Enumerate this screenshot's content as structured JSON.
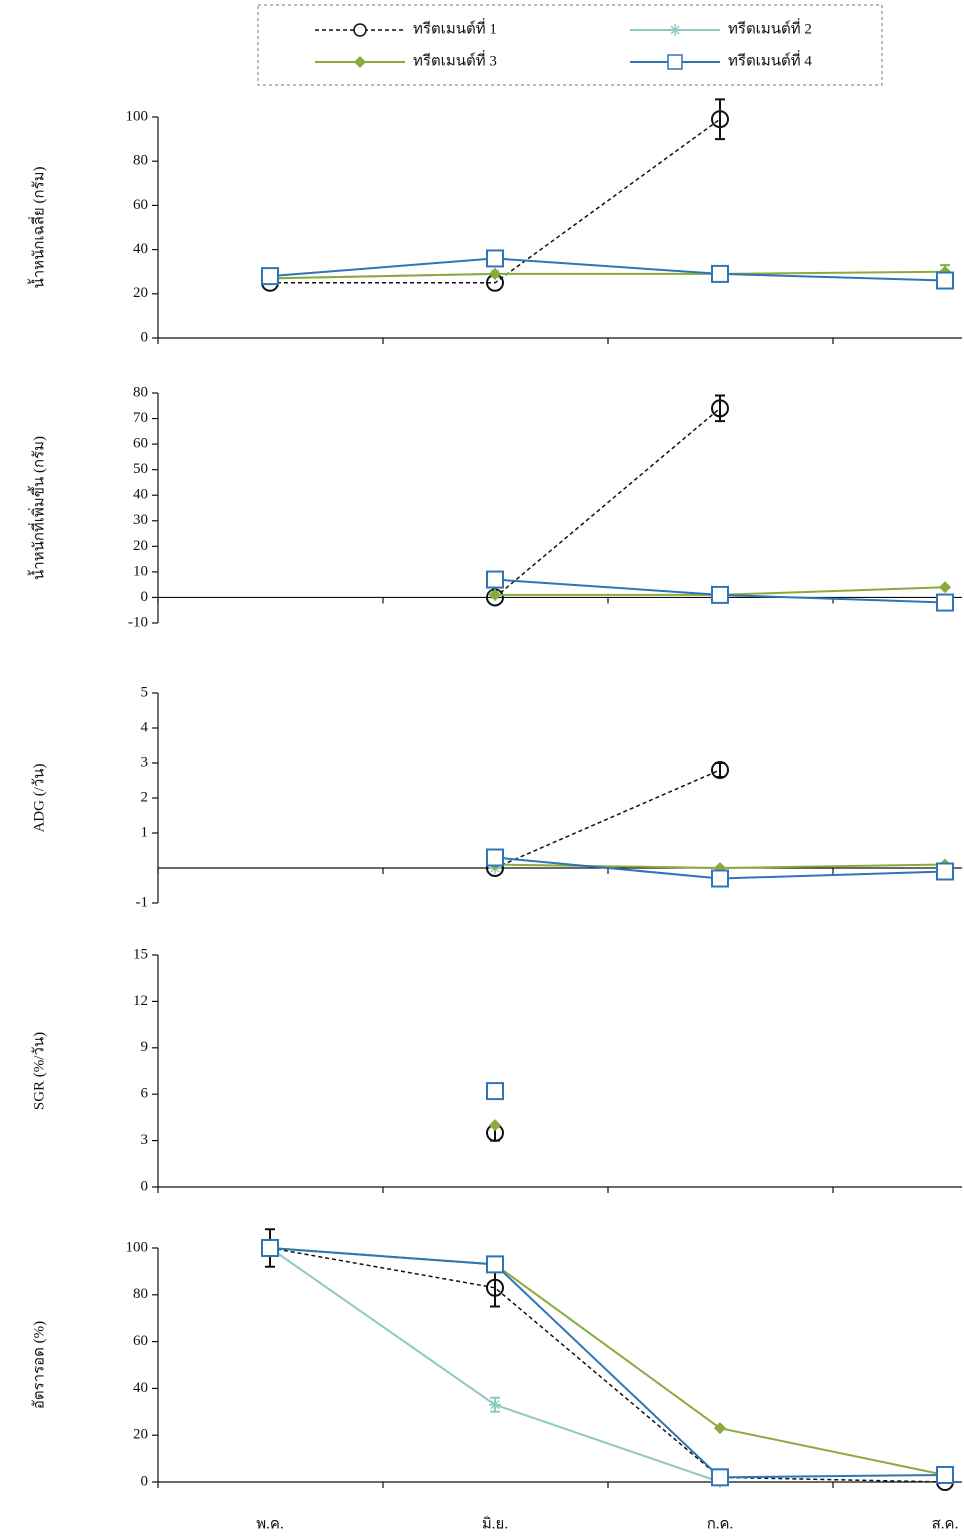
{
  "chart_data": {
    "type": "line",
    "categories": [
      "พ.ค.",
      "มิ.ย.",
      "ก.ค.",
      "ส.ค."
    ],
    "series": [
      {
        "name": "ทรีตเมนต์ที่ 1",
        "color": "#111111",
        "marker": "circle",
        "dash": true
      },
      {
        "name": "ทรีตเมนต์ที่ 2",
        "color": "#8fc9c2",
        "marker": "star",
        "dash": false
      },
      {
        "name": "ทรีตเมนต์ที่ 3",
        "color": "#8aab3c",
        "marker": "diamond",
        "dash": false
      },
      {
        "name": "ทรีตเมนต์ที่ 4",
        "color": "#2e75b6",
        "marker": "square",
        "dash": false
      }
    ],
    "panels": [
      {
        "ylabel": "น้ำหนักเฉลี่ย (กรัม)",
        "ylim": [
          0,
          100
        ],
        "yticks": [
          0,
          20,
          40,
          60,
          80,
          100
        ],
        "series": [
          {
            "values": [
              25,
              25,
              99,
              null
            ],
            "errors": [
              null,
              null,
              9,
              null
            ]
          },
          {
            "values": [
              27,
              29,
              null,
              null
            ],
            "errors": [
              null,
              null,
              null,
              null
            ]
          },
          {
            "values": [
              27,
              29,
              29,
              30
            ],
            "errors": [
              null,
              null,
              null,
              3
            ]
          },
          {
            "values": [
              28,
              36,
              29,
              26
            ],
            "errors": [
              null,
              null,
              null,
              null
            ]
          }
        ]
      },
      {
        "ylabel": "น้ำหนักที่เพิ่มขึ้น (กรัม)",
        "ylim": [
          -10,
          80
        ],
        "yticks": [
          -10,
          0,
          10,
          20,
          30,
          40,
          50,
          60,
          70,
          80
        ],
        "series": [
          {
            "values": [
              null,
              0,
              74,
              null
            ],
            "errors": [
              null,
              null,
              5,
              null
            ]
          },
          {
            "values": [
              null,
              1,
              null,
              null
            ],
            "errors": [
              null,
              null,
              null,
              null
            ]
          },
          {
            "values": [
              null,
              1,
              1,
              4
            ],
            "errors": [
              null,
              null,
              null,
              null
            ]
          },
          {
            "values": [
              null,
              7,
              1,
              -2
            ],
            "errors": [
              null,
              null,
              null,
              null
            ]
          }
        ]
      },
      {
        "ylabel": "ADG (/วัน)",
        "ylim": [
          -1,
          5
        ],
        "yticks": [
          -1,
          1,
          2,
          3,
          4,
          5
        ],
        "series": [
          {
            "values": [
              null,
              0,
              2.8,
              null
            ],
            "errors": [
              null,
              null,
              0.2,
              null
            ]
          },
          {
            "values": [
              null,
              0,
              null,
              null
            ],
            "errors": [
              null,
              null,
              null,
              null
            ]
          },
          {
            "values": [
              null,
              0.1,
              0,
              0.1
            ],
            "errors": [
              null,
              null,
              null,
              null
            ]
          },
          {
            "values": [
              null,
              0.3,
              -0.3,
              -0.1
            ],
            "errors": [
              null,
              null,
              null,
              null
            ]
          }
        ]
      },
      {
        "ylabel": "SGR (%/วัน)",
        "ylim": [
          0,
          15
        ],
        "yticks": [
          0,
          3,
          6,
          9,
          12,
          15
        ],
        "series": [
          {
            "values": [
              null,
              3.5,
              null,
              null
            ],
            "errors": [
              null,
              0.5,
              null,
              null
            ]
          },
          {
            "values": [
              null,
              null,
              null,
              null
            ],
            "errors": [
              null,
              null,
              null,
              null
            ]
          },
          {
            "values": [
              null,
              4,
              null,
              null
            ],
            "errors": [
              null,
              null,
              null,
              null
            ]
          },
          {
            "values": [
              null,
              6.2,
              null,
              null
            ],
            "errors": [
              null,
              null,
              null,
              null
            ]
          }
        ]
      },
      {
        "ylabel": "อัตรารอด (%)",
        "ylim": [
          0,
          100
        ],
        "yticks": [
          0,
          20,
          40,
          60,
          80,
          100
        ],
        "series": [
          {
            "values": [
              100,
              83,
              2,
              0
            ],
            "errors": [
              8,
              8,
              null,
              null
            ]
          },
          {
            "values": [
              100,
              33,
              0,
              null
            ],
            "errors": [
              null,
              3,
              null,
              null
            ]
          },
          {
            "values": [
              100,
              93,
              23,
              3
            ],
            "errors": [
              null,
              null,
              null,
              null
            ]
          },
          {
            "values": [
              100,
              93,
              2,
              3
            ],
            "errors": [
              null,
              null,
              null,
              null
            ]
          }
        ]
      }
    ]
  }
}
